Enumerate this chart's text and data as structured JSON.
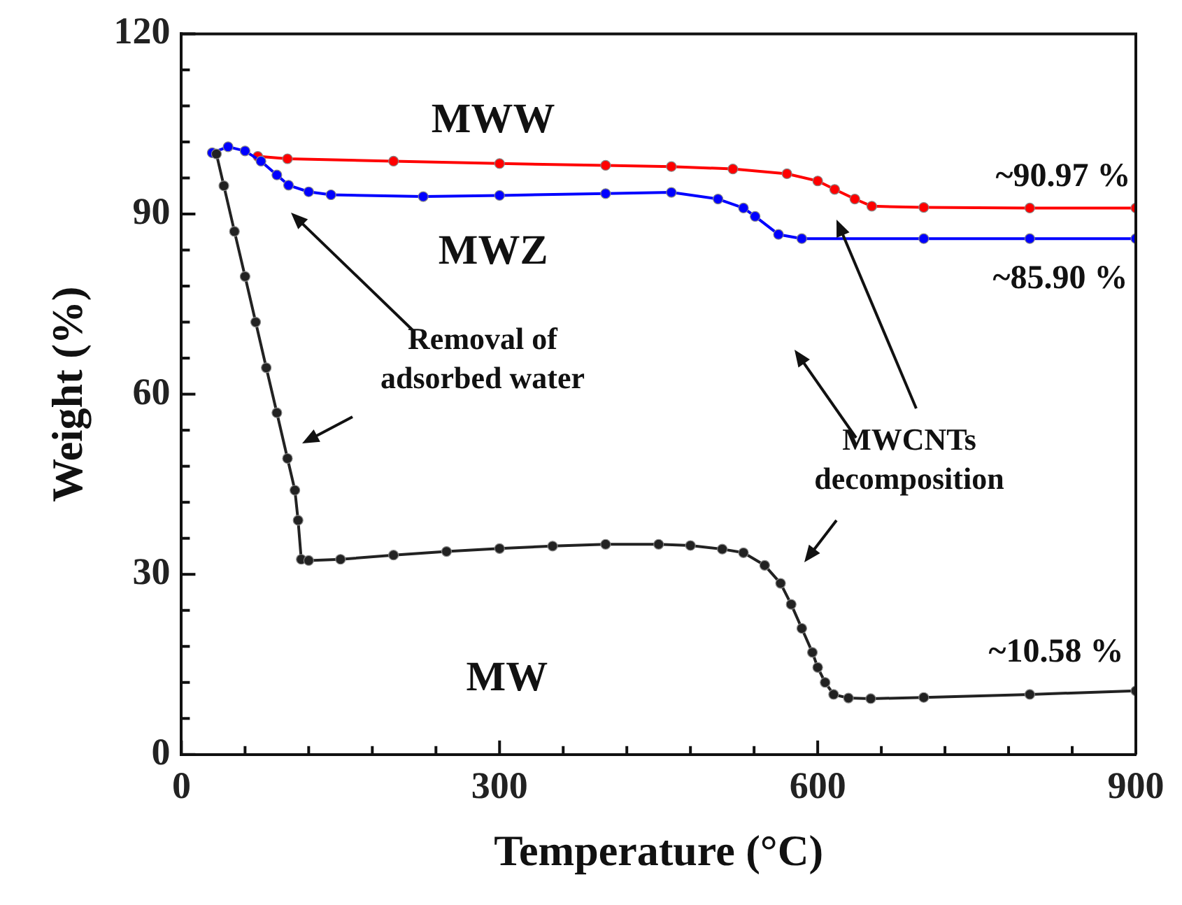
{
  "chart_data": {
    "type": "line",
    "xlabel": "Temperature (°C)",
    "ylabel": "Weight (%)",
    "xlim": [
      0,
      900
    ],
    "ylim": [
      0,
      120
    ],
    "xticks": [
      0,
      {
        "value": 60,
        "label": null
      },
      {
        "value": 120,
        "label": null
      },
      {
        "value": 180,
        "label": null
      },
      {
        "value": 240,
        "label": null
      },
      300,
      {
        "value": 360,
        "label": null
      },
      {
        "value": 420,
        "label": null
      },
      {
        "value": 480,
        "label": null
      },
      {
        "value": 540,
        "label": null
      },
      600,
      {
        "value": 660,
        "label": null
      },
      {
        "value": 720,
        "label": null
      },
      {
        "value": 780,
        "label": null
      },
      {
        "value": 840,
        "label": null
      },
      900
    ],
    "yticks": [
      0,
      {
        "value": 6,
        "label": null
      },
      {
        "value": 12,
        "label": null
      },
      {
        "value": 18,
        "label": null
      },
      {
        "value": 24,
        "label": null
      },
      30,
      {
        "value": 36,
        "label": null
      },
      {
        "value": 42,
        "label": null
      },
      {
        "value": 48,
        "label": null
      },
      {
        "value": 54,
        "label": null
      },
      60,
      {
        "value": 66,
        "label": null
      },
      {
        "value": 72,
        "label": null
      },
      {
        "value": 78,
        "label": null
      },
      {
        "value": 84,
        "label": null
      },
      90,
      {
        "value": 96,
        "label": null
      },
      {
        "value": 102,
        "label": null
      },
      {
        "value": 108,
        "label": null
      },
      {
        "value": 114,
        "label": null
      },
      120
    ],
    "grid": false,
    "legend": false,
    "marker": "circle",
    "line_style": "solid",
    "series": [
      {
        "name": "MWW",
        "color": "#ff0000",
        "x": [
          72,
          100,
          200,
          300,
          400,
          462,
          520,
          571,
          600,
          616,
          635,
          651,
          700,
          800,
          900
        ],
        "values": [
          99.6,
          99.2,
          98.8,
          98.4,
          98.1,
          97.9,
          97.5,
          96.7,
          95.5,
          94.1,
          92.5,
          91.3,
          91.1,
          91,
          91
        ]
      },
      {
        "name": "MWZ",
        "color": "#0000ff",
        "x": [
          29,
          44,
          60,
          75,
          90,
          101,
          120,
          141,
          228,
          300,
          400,
          462,
          506,
          530,
          541,
          563,
          585,
          700,
          800,
          900
        ],
        "values": [
          100.2,
          101.2,
          100.5,
          98.8,
          96.5,
          94.8,
          93.7,
          93.2,
          92.9,
          93.1,
          93.4,
          93.6,
          92.5,
          91,
          89.6,
          86.6,
          85.9,
          85.9,
          85.9,
          85.9
        ]
      },
      {
        "name": "MW",
        "color": "#222222",
        "x": [
          33,
          40,
          50,
          60,
          70,
          80,
          90,
          100,
          107,
          110,
          113,
          120,
          150,
          200,
          250,
          300,
          350,
          400,
          450,
          480,
          510,
          530,
          550,
          565,
          575,
          585,
          595,
          600,
          607,
          615,
          629,
          650,
          700,
          800,
          900
        ],
        "values": [
          100,
          94.7,
          87.1,
          79.6,
          72,
          64.4,
          56.9,
          49.3,
          44,
          39,
          32.5,
          32.3,
          32.5,
          33.2,
          33.8,
          34.3,
          34.7,
          35,
          35,
          34.8,
          34.2,
          33.6,
          31.5,
          28.5,
          25,
          21,
          17,
          14.5,
          12,
          10,
          9.4,
          9.3,
          9.5,
          10,
          10.6
        ]
      }
    ],
    "annotations": [
      "~90.97 %",
      "~85.90 %",
      "~10.58 %",
      "Removal of\nadsorbed water",
      "MWCNTs\ndecomposition"
    ]
  }
}
